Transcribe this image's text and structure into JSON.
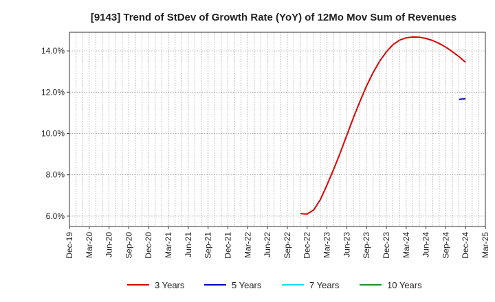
{
  "chart_data": {
    "type": "line",
    "title": "[9143]  Trend of StDev of Growth Rate (YoY) of 12Mo Mov Sum of Revenues",
    "xlabel": "",
    "ylabel": "",
    "x_ticks": [
      "Dec-19",
      "Mar-20",
      "Jun-20",
      "Sep-20",
      "Dec-20",
      "Mar-21",
      "Jun-21",
      "Sep-21",
      "Dec-21",
      "Mar-22",
      "Jun-22",
      "Sep-22",
      "Dec-22",
      "Mar-23",
      "Jun-23",
      "Sep-23",
      "Dec-23",
      "Mar-24",
      "Jun-24",
      "Sep-24",
      "Dec-24",
      "Mar-25"
    ],
    "y_ticks": [
      6.0,
      8.0,
      10.0,
      12.0,
      14.0
    ],
    "y_tick_labels": [
      "6.0%",
      "8.0%",
      "10.0%",
      "12.0%",
      "14.0%"
    ],
    "ylim": [
      5.5,
      14.9
    ],
    "x_range_months": [
      0,
      63
    ],
    "grid": true,
    "legend_position": "bottom",
    "series": [
      {
        "name": "3 Years",
        "color": "#dd0000",
        "points": [
          {
            "x": "Nov-22",
            "month": 35,
            "y": 6.12
          },
          {
            "x": "Dec-22",
            "month": 36,
            "y": 6.1
          },
          {
            "x": "Jan-23",
            "month": 37,
            "y": 6.3
          },
          {
            "x": "Feb-23",
            "month": 38,
            "y": 6.8
          },
          {
            "x": "Mar-23",
            "month": 39,
            "y": 7.5
          },
          {
            "x": "Apr-23",
            "month": 40,
            "y": 8.25
          },
          {
            "x": "May-23",
            "month": 41,
            "y": 9.05
          },
          {
            "x": "Jun-23",
            "month": 42,
            "y": 9.9
          },
          {
            "x": "Jul-23",
            "month": 43,
            "y": 10.75
          },
          {
            "x": "Aug-23",
            "month": 44,
            "y": 11.55
          },
          {
            "x": "Sep-23",
            "month": 45,
            "y": 12.3
          },
          {
            "x": "Oct-23",
            "month": 46,
            "y": 12.95
          },
          {
            "x": "Nov-23",
            "month": 47,
            "y": 13.5
          },
          {
            "x": "Dec-23",
            "month": 48,
            "y": 13.95
          },
          {
            "x": "Jan-24",
            "month": 49,
            "y": 14.3
          },
          {
            "x": "Feb-24",
            "month": 50,
            "y": 14.52
          },
          {
            "x": "Mar-24",
            "month": 51,
            "y": 14.63
          },
          {
            "x": "Apr-24",
            "month": 52,
            "y": 14.67
          },
          {
            "x": "May-24",
            "month": 53,
            "y": 14.66
          },
          {
            "x": "Jun-24",
            "month": 54,
            "y": 14.6
          },
          {
            "x": "Jul-24",
            "month": 55,
            "y": 14.5
          },
          {
            "x": "Aug-24",
            "month": 56,
            "y": 14.36
          },
          {
            "x": "Sep-24",
            "month": 57,
            "y": 14.18
          },
          {
            "x": "Oct-24",
            "month": 58,
            "y": 13.96
          },
          {
            "x": "Nov-24",
            "month": 59,
            "y": 13.72
          },
          {
            "x": "Dec-24",
            "month": 60,
            "y": 13.45
          }
        ]
      },
      {
        "name": "5 Years",
        "color": "#0000cc",
        "points": [
          {
            "x": "Nov-24",
            "month": 59,
            "y": 11.65
          },
          {
            "x": "Dec-24",
            "month": 60,
            "y": 11.68
          }
        ]
      },
      {
        "name": "7 Years",
        "color": "#00e5ee",
        "points": []
      },
      {
        "name": "10 Years",
        "color": "#228b22",
        "points": []
      }
    ]
  }
}
